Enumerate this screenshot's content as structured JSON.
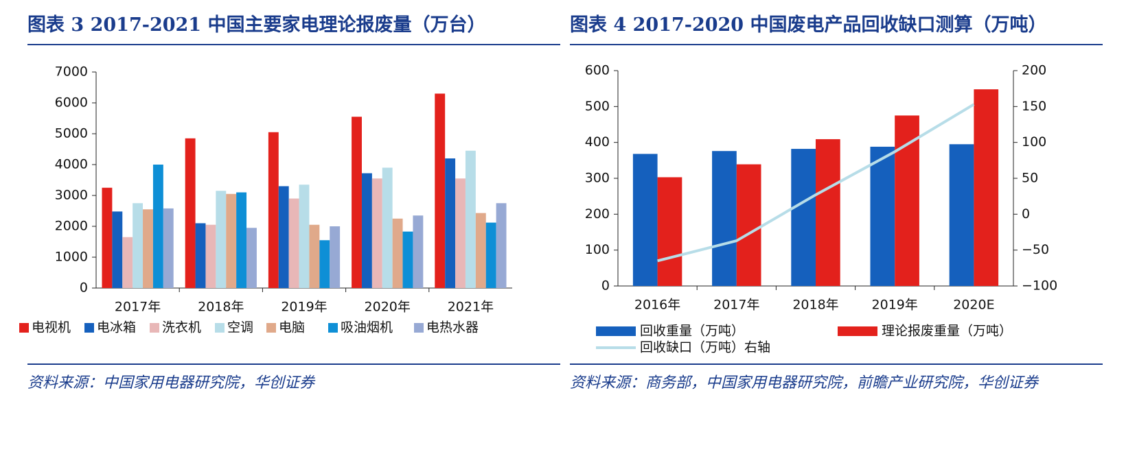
{
  "chart_data": [
    {
      "type": "bar",
      "title": "图表 3   2017-2021 中国主要家电理论报废量（万台）",
      "source": "资料来源：中国家用电器研究院，华创证券",
      "categories": [
        "2017年",
        "2018年",
        "2019年",
        "2020年",
        "2021年"
      ],
      "series": [
        {
          "name": "电视机",
          "color": "#e3211c",
          "values": [
            3250,
            4850,
            5050,
            5550,
            6300
          ]
        },
        {
          "name": "电冰箱",
          "color": "#1560bd",
          "values": [
            2480,
            2100,
            3300,
            3720,
            4200
          ]
        },
        {
          "name": "洗衣机",
          "color": "#e8b7b7",
          "values": [
            1650,
            2050,
            2900,
            3550,
            3550
          ]
        },
        {
          "name": "空调",
          "color": "#b7dde8",
          "values": [
            2750,
            3150,
            3350,
            3900,
            4450
          ]
        },
        {
          "name": "电脑",
          "color": "#e0a98a",
          "values": [
            2550,
            3050,
            2050,
            2250,
            2430
          ]
        },
        {
          "name": "吸油烟机",
          "color": "#0e8fd6",
          "values": [
            4000,
            3100,
            1550,
            1830,
            2120
          ]
        },
        {
          "name": "电热水器",
          "color": "#97a9d4",
          "values": [
            2580,
            1950,
            2000,
            2350,
            2750
          ]
        }
      ],
      "ylim": [
        0,
        7000
      ],
      "yticks": [
        0,
        1000,
        2000,
        3000,
        4000,
        5000,
        6000,
        7000
      ]
    },
    {
      "type": "bar",
      "title": "图表 4   2017-2020 中国废电产品回收缺口测算（万吨）",
      "source": "资料来源：商务部，中国家用电器研究院，前瞻产业研究院，华创证券",
      "categories": [
        "2016年",
        "2017年",
        "2018年",
        "2019年",
        "2020E"
      ],
      "series": [
        {
          "name": "回收重量（万吨）",
          "color": "#1560bd",
          "values": [
            368,
            376,
            382,
            388,
            395
          ]
        },
        {
          "name": "理论报废重量（万吨）",
          "color": "#e3211c",
          "values": [
            303,
            339,
            409,
            475,
            548
          ]
        },
        {
          "name": "回收缺口（万吨）右轴",
          "color": "#b7dde8",
          "type": "line",
          "axis": "y2",
          "values": [
            -65,
            -37,
            27,
            87,
            153
          ]
        }
      ],
      "ylim": [
        0,
        600
      ],
      "yticks": [
        0,
        100,
        200,
        300,
        400,
        500,
        600
      ],
      "y2lim": [
        -100,
        200
      ],
      "y2ticks": [
        {
          "value": -100,
          "label": "−100"
        },
        {
          "value": -50,
          "label": "−50"
        },
        0,
        50,
        100,
        150,
        200
      ]
    }
  ]
}
